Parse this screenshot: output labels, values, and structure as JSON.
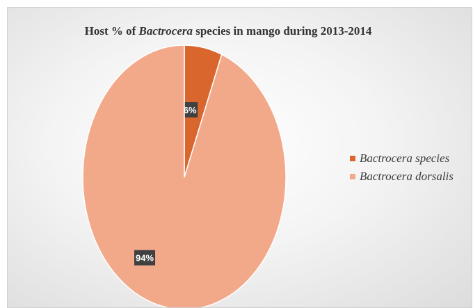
{
  "chart_data": {
    "type": "pie",
    "title_parts": [
      "Host % of ",
      "Bactrocera",
      " species in mango during 2013-2014"
    ],
    "slices": [
      {
        "name": "Bactrocera species",
        "value": 6,
        "label": "6%",
        "color": "#d9672d"
      },
      {
        "name": "Bactrocera dorsalis",
        "value": 94,
        "label": "94%",
        "color": "#f2a98a"
      }
    ],
    "legend_position": "right"
  }
}
